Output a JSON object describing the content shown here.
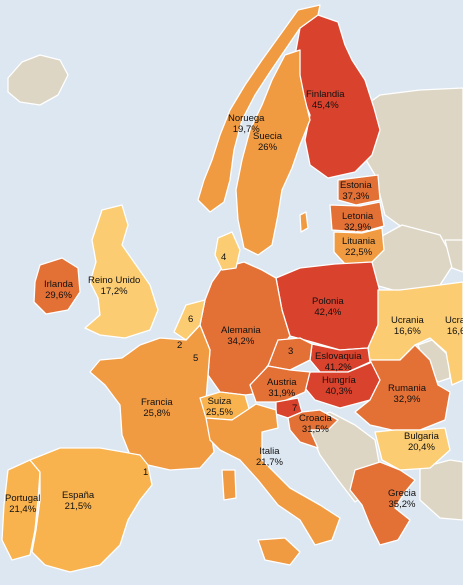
{
  "colors": {
    "sea": "#dde7f1",
    "non_data": "#ddd6c5",
    "very_high": "#d9432d",
    "high": "#e37035",
    "mid": "#f09a42",
    "low": "#f8b24e",
    "very_low": "#fbcc72"
  },
  "countries": [
    {
      "id": "finlandia",
      "name": "Finlandia",
      "value": "45,4%"
    },
    {
      "id": "noruega",
      "name": "Noruega",
      "value": "19,7%"
    },
    {
      "id": "suecia",
      "name": "Suecia",
      "value": "26%"
    },
    {
      "id": "estonia",
      "name": "Estonia",
      "value": "37,3%"
    },
    {
      "id": "letonia",
      "name": "Letonia",
      "value": "32,9%"
    },
    {
      "id": "lituania",
      "name": "Lituania",
      "value": "22,5%"
    },
    {
      "id": "irlanda",
      "name": "Irlanda",
      "value": "29,6%"
    },
    {
      "id": "reino-unido",
      "name": "Reino Unido",
      "value": "17,2%"
    },
    {
      "id": "polonia",
      "name": "Polonia",
      "value": "42,4%"
    },
    {
      "id": "ucrania",
      "name": "Ucrania",
      "value": "16,6%"
    },
    {
      "id": "ucrania-2",
      "name": "Ucrai",
      "value": "16,6"
    },
    {
      "id": "alemania",
      "name": "Alemania",
      "value": "34,2%"
    },
    {
      "id": "eslovaquia",
      "name": "Eslovaquia",
      "value": "41,2%"
    },
    {
      "id": "hungria",
      "name": "Hungría",
      "value": "40,3%"
    },
    {
      "id": "austria",
      "name": "Austria",
      "value": "31,9%"
    },
    {
      "id": "francia",
      "name": "Francia",
      "value": "25,8%"
    },
    {
      "id": "suiza",
      "name": "Suiza",
      "value": "25,5%"
    },
    {
      "id": "rumania",
      "name": "Rumania",
      "value": "32,9%"
    },
    {
      "id": "croacia",
      "name": "Croacia",
      "value": "31,5%"
    },
    {
      "id": "italia",
      "name": "Italia",
      "value": "21,7%"
    },
    {
      "id": "bulgaria",
      "name": "Bulgaria",
      "value": "20,4%"
    },
    {
      "id": "portugal",
      "name": "Portugal",
      "value": "21,4%"
    },
    {
      "id": "espana",
      "name": "España",
      "value": "21,5%"
    },
    {
      "id": "grecia",
      "name": "Grecia",
      "value": "35,2%"
    }
  ],
  "markers": [
    "1",
    "2",
    "3",
    "4",
    "5",
    "6",
    "7"
  ]
}
